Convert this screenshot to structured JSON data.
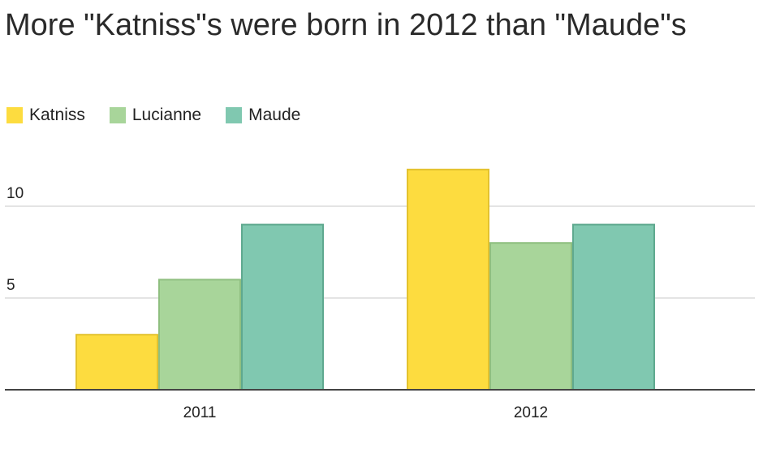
{
  "chart_data": {
    "type": "bar",
    "title": "More \"Katniss\"s were born in 2012 than \"Maude\"s",
    "xlabel": "",
    "ylabel": "",
    "categories": [
      "2011",
      "2012"
    ],
    "series": [
      {
        "name": "Katniss",
        "values": [
          3,
          12
        ],
        "color": "#fddc3f",
        "stroke": "#e3c22e"
      },
      {
        "name": "Lucianne",
        "values": [
          6,
          8
        ],
        "color": "#a8d59a",
        "stroke": "#8fbf80"
      },
      {
        "name": "Maude",
        "values": [
          9,
          9
        ],
        "color": "#80c8b0",
        "stroke": "#5fa98f"
      }
    ],
    "ylim": [
      0,
      12
    ],
    "y_ticks": [
      "5",
      "10"
    ],
    "grid": true,
    "legend": "top-left"
  }
}
